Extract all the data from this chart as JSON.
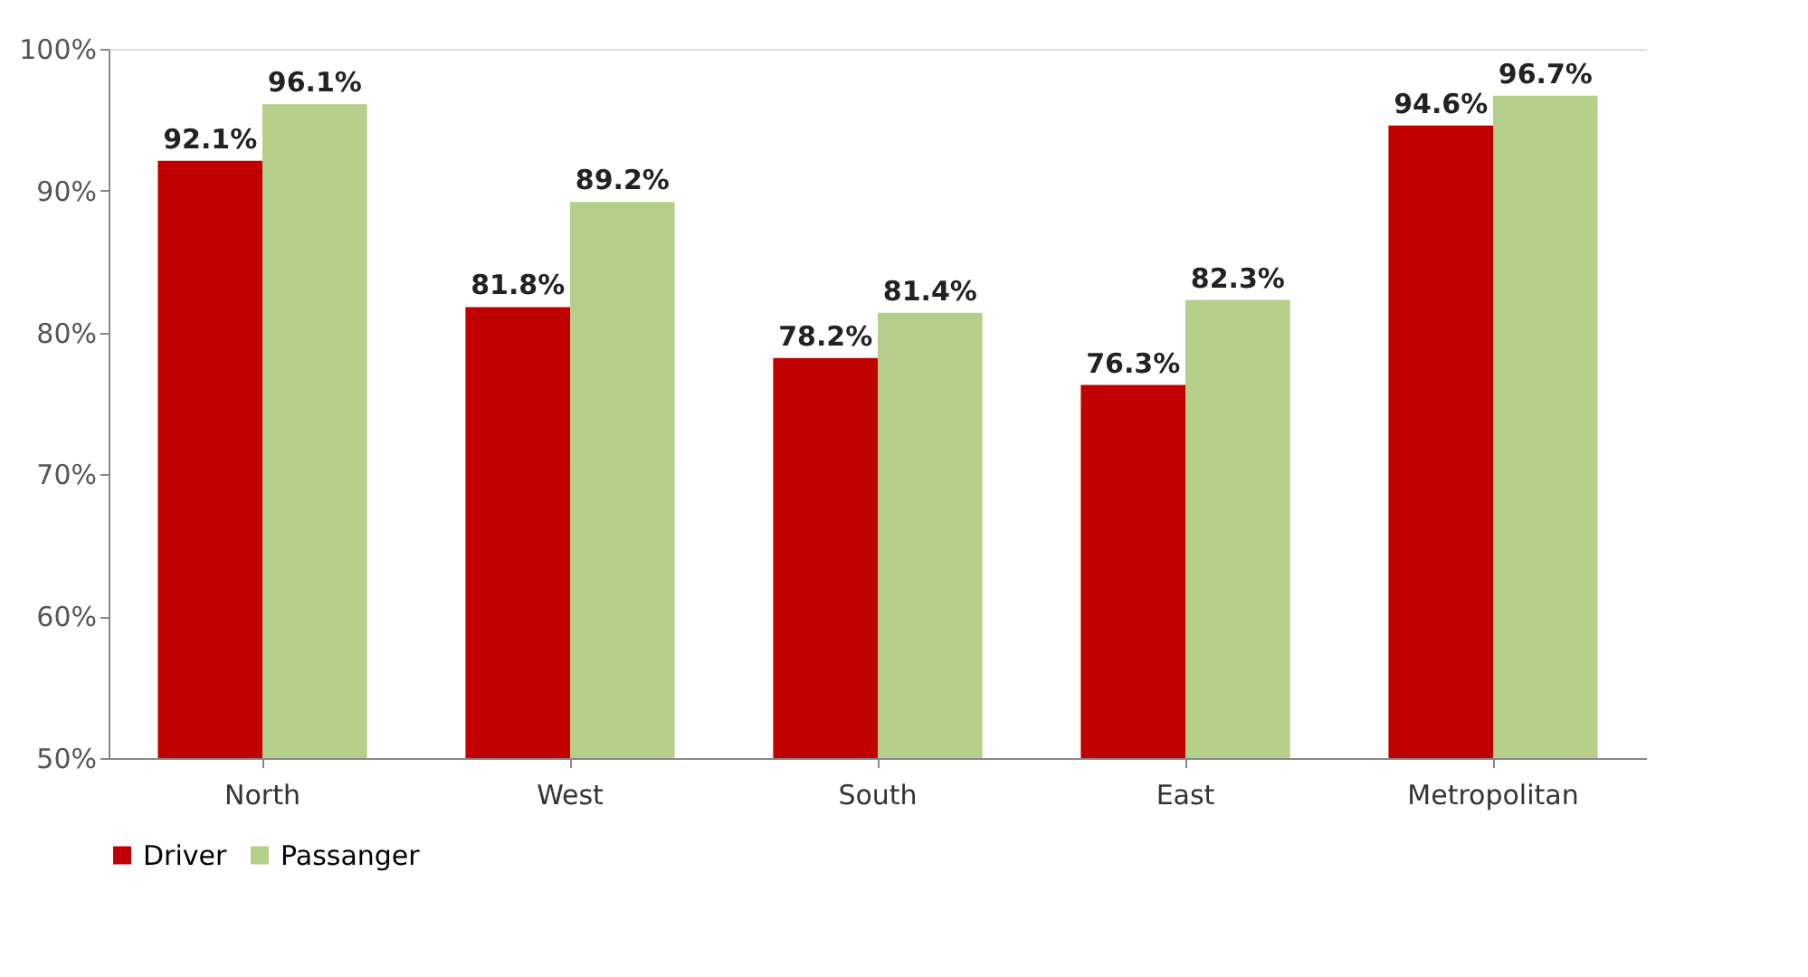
{
  "chart_data": {
    "type": "bar",
    "categories": [
      "North",
      "West",
      "South",
      "East",
      "Metropolitan"
    ],
    "series": [
      {
        "name": "Driver",
        "color": "#c00000",
        "values": [
          92.1,
          81.8,
          78.2,
          76.3,
          94.6
        ],
        "value_labels": [
          "92.1%",
          "81.8%",
          "78.2%",
          "76.3%",
          "94.6%"
        ]
      },
      {
        "name": "Passanger",
        "color": "#b5cf8a",
        "values": [
          96.1,
          89.2,
          81.4,
          82.3,
          96.7
        ],
        "value_labels": [
          "96.1%",
          "89.2%",
          "81.4%",
          "82.3%",
          "96.7%"
        ]
      }
    ],
    "ylim": [
      50,
      100
    ],
    "yticks": [
      {
        "value": 50,
        "label": "50%"
      },
      {
        "value": 60,
        "label": "60%"
      },
      {
        "value": 70,
        "label": "70%"
      },
      {
        "value": 80,
        "label": "80%"
      },
      {
        "value": 90,
        "label": "90%"
      },
      {
        "value": 100,
        "label": "100%"
      }
    ],
    "grid": false,
    "legend": "bottom"
  }
}
